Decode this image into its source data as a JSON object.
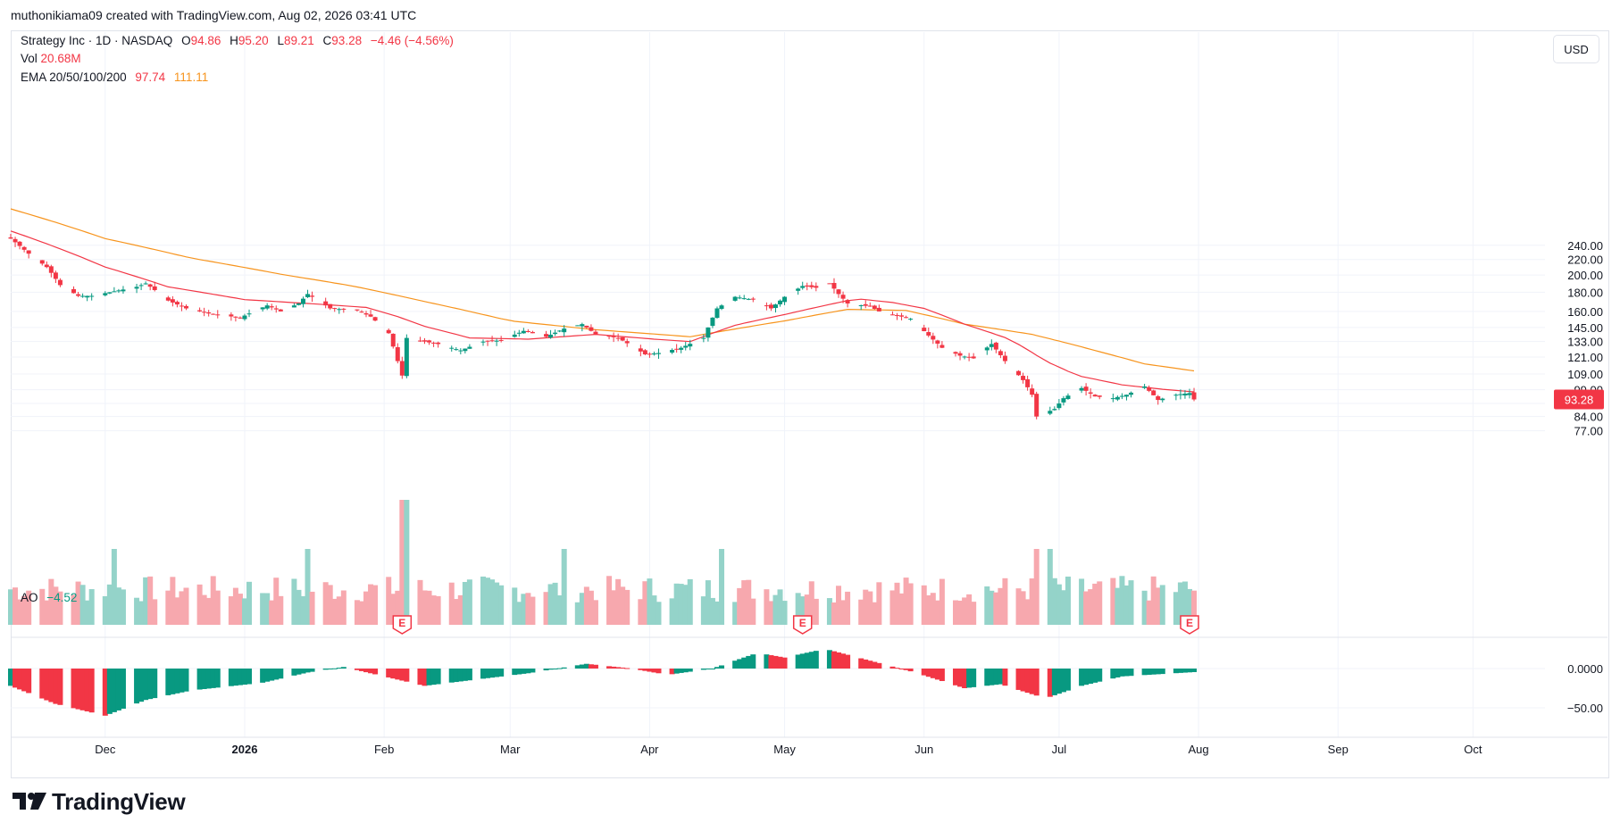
{
  "header": {
    "attribution": "muthonikiama09 created with TradingView.com, Aug 02, 2026 03:41 UTC"
  },
  "legend": {
    "symbol": "Strategy Inc · 1D · NASDAQ",
    "open_label": "O",
    "open": "94.86",
    "high_label": "H",
    "high": "95.20",
    "low_label": "L",
    "low": "89.21",
    "close_label": "C",
    "close": "93.28",
    "change": "−4.46 (−4.56%)",
    "vol_label": "Vol",
    "vol": "20.68M",
    "ema_label": "EMA 20/50/100/200",
    "ema20": "97.74",
    "ema50": "111.11",
    "ao_label": "AO",
    "ao": "−4.52"
  },
  "currency_button": "USD",
  "price_badge": "93.28",
  "brand": "TradingView",
  "colors": {
    "up": "#089981",
    "down": "#f23645",
    "ema20": "#f23645",
    "ema50": "#f7941d",
    "vol_up": "#94d3c9",
    "vol_down": "#f7a8ae",
    "ao_up": "#089981",
    "ao_down": "#f23645"
  },
  "chart_data": {
    "type": "candlestick",
    "log_scale": true,
    "grid": true,
    "price_ticks": [
      "240.00",
      "220.00",
      "200.00",
      "180.00",
      "160.00",
      "145.00",
      "133.00",
      "121.00",
      "109.00",
      "99.00",
      "91.00",
      "84.00",
      "77.00"
    ],
    "ao_ticks": [
      "0.0000",
      "−50.00"
    ],
    "x_labels": [
      {
        "text": "Dec",
        "date": "2025-12-01",
        "bold": false
      },
      {
        "text": "2026",
        "date": "2026-01-01",
        "bold": true
      },
      {
        "text": "Feb",
        "date": "2026-02-01",
        "bold": false
      },
      {
        "text": "Mar",
        "date": "2026-03-01",
        "bold": false
      },
      {
        "text": "Apr",
        "date": "2026-04-01",
        "bold": false
      },
      {
        "text": "May",
        "date": "2026-05-01",
        "bold": false
      },
      {
        "text": "Jun",
        "date": "2026-06-01",
        "bold": false
      },
      {
        "text": "Jul",
        "date": "2026-07-01",
        "bold": false
      },
      {
        "text": "Aug",
        "date": "2026-08-01",
        "bold": false
      },
      {
        "text": "Sep",
        "date": "2026-09-01",
        "bold": false
      },
      {
        "text": "Oct",
        "date": "2026-10-01",
        "bold": false
      }
    ],
    "earnings_markers": [
      {
        "label": "E",
        "date": "2026-02-05"
      },
      {
        "label": "E",
        "date": "2026-05-05"
      },
      {
        "label": "E",
        "date": "2026-07-30"
      }
    ],
    "close_path": [
      [
        "2025-11-10",
        250
      ],
      [
        "2025-11-14",
        228
      ],
      [
        "2025-11-18",
        210
      ],
      [
        "2025-11-21",
        188
      ],
      [
        "2025-11-25",
        176
      ],
      [
        "2025-11-28",
        176
      ],
      [
        "2025-12-03",
        181
      ],
      [
        "2025-12-08",
        186
      ],
      [
        "2025-12-10",
        190
      ],
      [
        "2025-12-15",
        171
      ],
      [
        "2025-12-19",
        163
      ],
      [
        "2025-12-24",
        158
      ],
      [
        "2025-12-31",
        154
      ],
      [
        "2026-01-06",
        166
      ],
      [
        "2026-01-09",
        160
      ],
      [
        "2026-01-13",
        168
      ],
      [
        "2026-01-15",
        178
      ],
      [
        "2026-01-20",
        163
      ],
      [
        "2026-01-26",
        161
      ],
      [
        "2026-01-29",
        155
      ],
      [
        "2026-02-02",
        140
      ],
      [
        "2026-02-04",
        118
      ],
      [
        "2026-02-05",
        108
      ],
      [
        "2026-02-06",
        136
      ],
      [
        "2026-02-10",
        133
      ],
      [
        "2026-02-13",
        131
      ],
      [
        "2026-02-18",
        126
      ],
      [
        "2026-02-23",
        133
      ],
      [
        "2026-02-27",
        134
      ],
      [
        "2026-03-04",
        142
      ],
      [
        "2026-03-09",
        137
      ],
      [
        "2026-03-13",
        144
      ],
      [
        "2026-03-17",
        148
      ],
      [
        "2026-03-20",
        139
      ],
      [
        "2026-03-25",
        136
      ],
      [
        "2026-03-31",
        123
      ],
      [
        "2026-04-03",
        124
      ],
      [
        "2026-04-08",
        128
      ],
      [
        "2026-04-13",
        136
      ],
      [
        "2026-04-16",
        163
      ],
      [
        "2026-04-20",
        175
      ],
      [
        "2026-04-24",
        172
      ],
      [
        "2026-04-28",
        163
      ],
      [
        "2026-05-01",
        175
      ],
      [
        "2026-05-05",
        187
      ],
      [
        "2026-05-08",
        185
      ],
      [
        "2026-05-11",
        190
      ],
      [
        "2026-05-13",
        178
      ],
      [
        "2026-05-15",
        168
      ],
      [
        "2026-05-20",
        165
      ],
      [
        "2026-05-22",
        160
      ],
      [
        "2026-05-27",
        155
      ],
      [
        "2026-05-29",
        153
      ],
      [
        "2026-06-02",
        138
      ],
      [
        "2026-06-05",
        128
      ],
      [
        "2026-06-09",
        122
      ],
      [
        "2026-06-12",
        120
      ],
      [
        "2026-06-16",
        131
      ],
      [
        "2026-06-19",
        118
      ],
      [
        "2026-06-23",
        105
      ],
      [
        "2026-06-25",
        96
      ],
      [
        "2026-06-26",
        84
      ],
      [
        "2026-06-30",
        88
      ],
      [
        "2026-07-02",
        94
      ],
      [
        "2026-07-06",
        100
      ],
      [
        "2026-07-09",
        95
      ],
      [
        "2026-07-13",
        94
      ],
      [
        "2026-07-16",
        96
      ],
      [
        "2026-07-20",
        101
      ],
      [
        "2026-07-23",
        93
      ],
      [
        "2026-07-27",
        96
      ],
      [
        "2026-07-30",
        97
      ],
      [
        "2026-07-31",
        93.28
      ]
    ],
    "ema20_path": [
      [
        "2025-11-10",
        262
      ],
      [
        "2025-12-01",
        210
      ],
      [
        "2025-12-15",
        186
      ],
      [
        "2026-01-01",
        172
      ],
      [
        "2026-01-15",
        168
      ],
      [
        "2026-01-28",
        164
      ],
      [
        "2026-02-04",
        155
      ],
      [
        "2026-02-10",
        146
      ],
      [
        "2026-02-20",
        136
      ],
      [
        "2026-03-05",
        135
      ],
      [
        "2026-03-20",
        139
      ],
      [
        "2026-04-02",
        135
      ],
      [
        "2026-04-10",
        133
      ],
      [
        "2026-04-20",
        147
      ],
      [
        "2026-05-01",
        157
      ],
      [
        "2026-05-10",
        166
      ],
      [
        "2026-05-17",
        173
      ],
      [
        "2026-05-25",
        169
      ],
      [
        "2026-06-01",
        163
      ],
      [
        "2026-06-10",
        148
      ],
      [
        "2026-06-20",
        135
      ],
      [
        "2026-06-28",
        118
      ],
      [
        "2026-07-05",
        108
      ],
      [
        "2026-07-15",
        102
      ],
      [
        "2026-07-25",
        99
      ],
      [
        "2026-07-31",
        97.74
      ]
    ],
    "ema50_path": [
      [
        "2025-11-10",
        300
      ],
      [
        "2025-12-01",
        250
      ],
      [
        "2025-12-20",
        222
      ],
      [
        "2026-01-10",
        200
      ],
      [
        "2026-01-25",
        187
      ],
      [
        "2026-02-10",
        170
      ],
      [
        "2026-03-01",
        151
      ],
      [
        "2026-03-20",
        143
      ],
      [
        "2026-04-10",
        137
      ],
      [
        "2026-05-01",
        151
      ],
      [
        "2026-05-15",
        162
      ],
      [
        "2026-05-28",
        161
      ],
      [
        "2026-06-10",
        148
      ],
      [
        "2026-06-25",
        139
      ],
      [
        "2026-07-10",
        125
      ],
      [
        "2026-07-20",
        116
      ],
      [
        "2026-07-31",
        111.11
      ]
    ],
    "ao_path": [
      [
        "2025-11-10",
        -22
      ],
      [
        "2025-11-20",
        -45
      ],
      [
        "2025-12-01",
        -60
      ],
      [
        "2025-12-10",
        -40
      ],
      [
        "2025-12-20",
        -28
      ],
      [
        "2026-01-05",
        -18
      ],
      [
        "2026-01-15",
        -5
      ],
      [
        "2026-01-23",
        2
      ],
      [
        "2026-02-01",
        -10
      ],
      [
        "2026-02-10",
        -22
      ],
      [
        "2026-02-20",
        -15
      ],
      [
        "2026-03-05",
        -6
      ],
      [
        "2026-03-18",
        6
      ],
      [
        "2026-03-28",
        0
      ],
      [
        "2026-04-05",
        -8
      ],
      [
        "2026-04-15",
        0
      ],
      [
        "2026-04-25",
        20
      ],
      [
        "2026-05-01",
        14
      ],
      [
        "2026-05-10",
        25
      ],
      [
        "2026-05-20",
        10
      ],
      [
        "2026-05-30",
        -5
      ],
      [
        "2026-06-10",
        -25
      ],
      [
        "2026-06-18",
        -20
      ],
      [
        "2026-06-28",
        -38
      ],
      [
        "2026-07-06",
        -22
      ],
      [
        "2026-07-15",
        -10
      ],
      [
        "2026-07-31",
        -4.52
      ]
    ]
  }
}
